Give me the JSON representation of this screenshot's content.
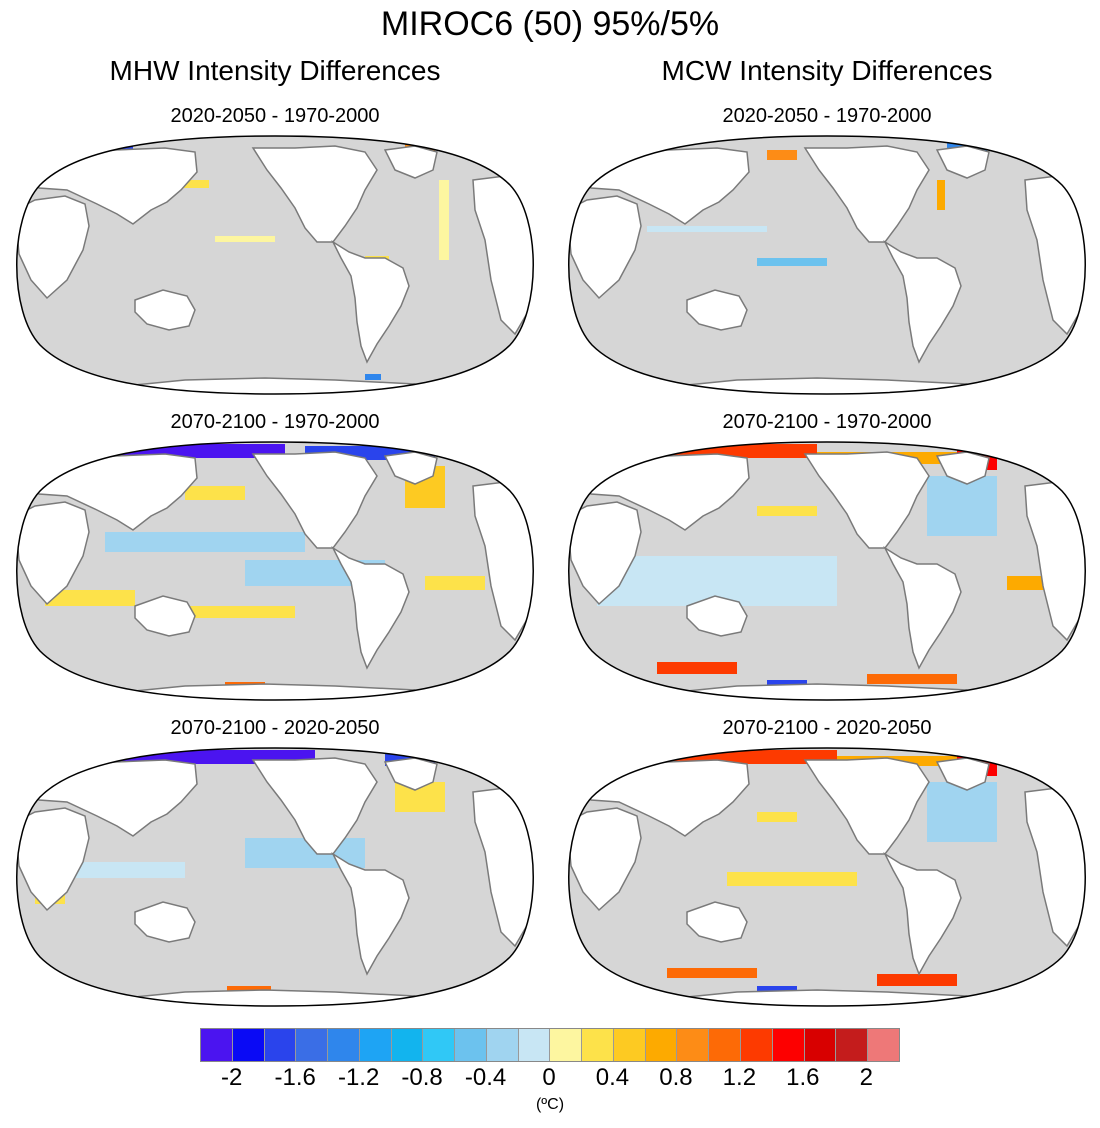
{
  "title": "MIROC6 (50) 95%/5%",
  "columns": [
    {
      "title": "MHW Intensity Differences"
    },
    {
      "title": "MCW Intensity Differences"
    }
  ],
  "panels": [
    {
      "title": "2020-2050 - 1970-2000"
    },
    {
      "title": "2070-2100 - 1970-2000"
    },
    {
      "title": "2070-2100 - 2020-2050"
    }
  ],
  "colorbar": {
    "colors": [
      "#4b14f0",
      "#0a0af5",
      "#2a44ec",
      "#3a6ee6",
      "#2f86ec",
      "#1ea4f4",
      "#12b4ee",
      "#30c8f6",
      "#6cc2ee",
      "#a0d4f0",
      "#c8e6f4",
      "#fdf6a0",
      "#fde24a",
      "#fdca22",
      "#fdaa00",
      "#fd8c16",
      "#fd6a06",
      "#fd3a00",
      "#fd0000",
      "#d80000",
      "#c41c1c",
      "#ee7878"
    ],
    "tick_labels": [
      "-2",
      "-1.6",
      "-1.2",
      "-0.8",
      "-0.4",
      "0",
      "0.4",
      "0.8",
      "1.2",
      "1.6",
      "2"
    ],
    "units": "(ºC)"
  },
  "map_colors": {
    "ocean": "#d6d6d6",
    "land": "#ffffff",
    "coast": "#7a7a7a"
  }
}
